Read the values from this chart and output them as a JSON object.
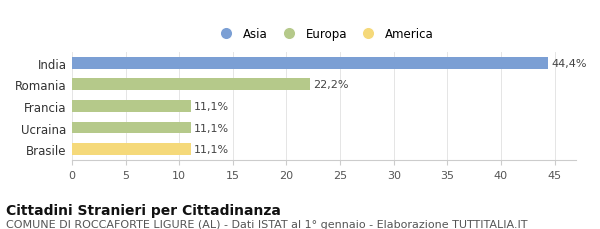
{
  "categories": [
    "Brasile",
    "Ucraina",
    "Francia",
    "Romania",
    "India"
  ],
  "values": [
    11.1,
    11.1,
    11.1,
    22.2,
    44.4
  ],
  "labels": [
    "11,1%",
    "11,1%",
    "11,1%",
    "22,2%",
    "44,4%"
  ],
  "colors": [
    "#f5d97a",
    "#b5c98a",
    "#b5c98a",
    "#b5c98a",
    "#7b9fd4"
  ],
  "legend_entries": [
    {
      "label": "Asia",
      "color": "#7b9fd4"
    },
    {
      "label": "Europa",
      "color": "#b5c98a"
    },
    {
      "label": "America",
      "color": "#f5d97a"
    }
  ],
  "xlim": [
    0,
    47
  ],
  "xticks": [
    0,
    5,
    10,
    15,
    20,
    25,
    30,
    35,
    40,
    45
  ],
  "title_bold": "Cittadini Stranieri per Cittadinanza",
  "subtitle": "COMUNE DI ROCCAFORTE LIGURE (AL) - Dati ISTAT al 1° gennaio - Elaborazione TUTTITALIA.IT",
  "background_color": "#ffffff",
  "bar_edge_color": "none",
  "title_fontsize": 10,
  "subtitle_fontsize": 8,
  "label_fontsize": 8,
  "tick_fontsize": 8,
  "ytick_fontsize": 8.5
}
